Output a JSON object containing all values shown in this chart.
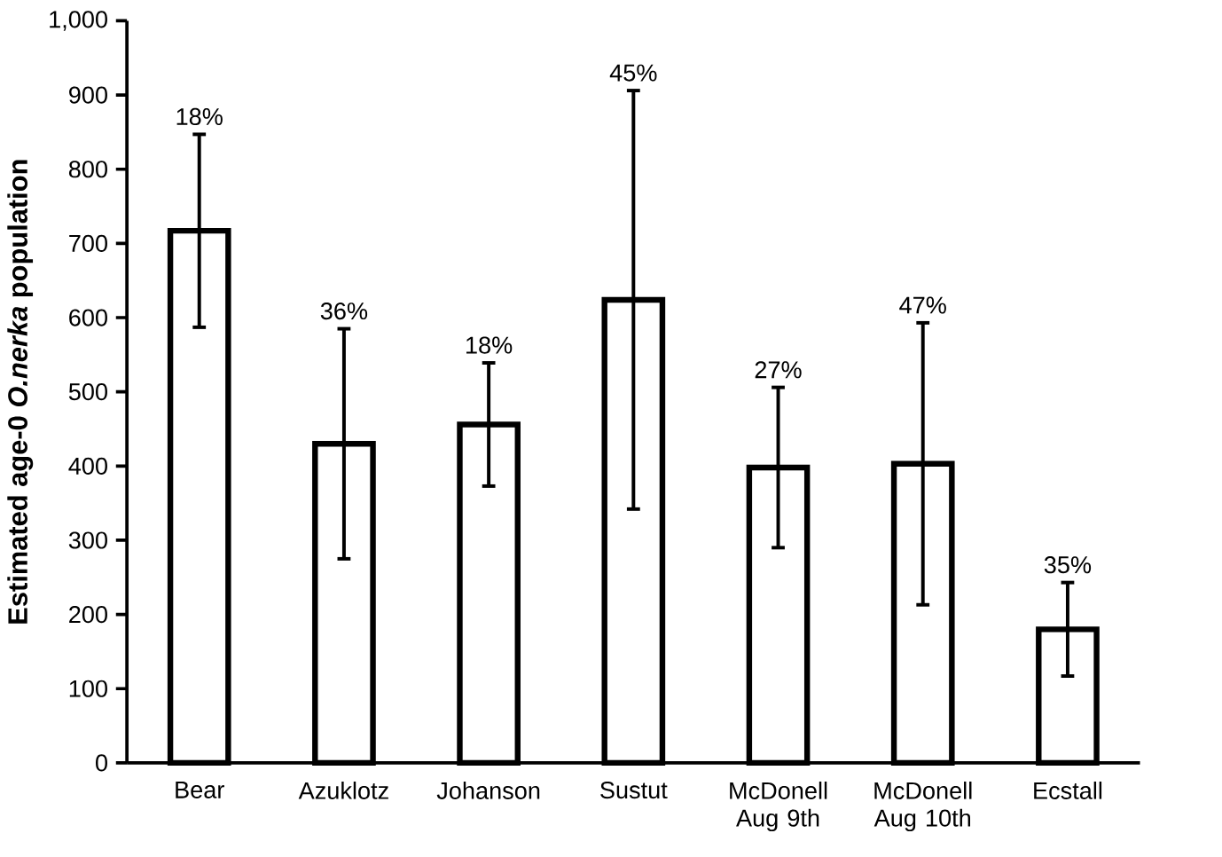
{
  "chart_data": {
    "type": "bar",
    "ylabel": "Estimated age-0 *O.nerka* population",
    "categories": [
      "Bear",
      "Azuklotz",
      "Johanson",
      "Sustut",
      "McDonell Aug 9th",
      "McDonell Aug 10th",
      "Ecstall"
    ],
    "values": [
      717,
      430,
      456,
      624,
      398,
      403,
      180
    ],
    "errors": [
      130,
      155,
      83,
      282,
      108,
      190,
      63
    ],
    "annotations": [
      {
        "text": "18%",
        "x": "Bear",
        "y": 847
      },
      {
        "text": "36%",
        "x": "Azuklotz",
        "y": 585
      },
      {
        "text": "18%",
        "x": "Johanson",
        "y": 539
      },
      {
        "text": "45%",
        "x": "Sustut",
        "y": 906
      },
      {
        "text": "27%",
        "x": "McDonell Aug 9th",
        "y": 506
      },
      {
        "text": "47%",
        "x": "McDonell Aug 10th",
        "y": 593
      },
      {
        "text": "35%",
        "x": "Ecstall",
        "y": 243
      }
    ],
    "color": "#000000",
    "ylim": [
      0,
      1000
    ],
    "yticks": [
      0,
      100,
      200,
      300,
      400,
      500,
      600,
      700,
      800,
      900,
      {
        "value": 1000,
        "label": "1,000"
      }
    ],
    "grid": false
  }
}
